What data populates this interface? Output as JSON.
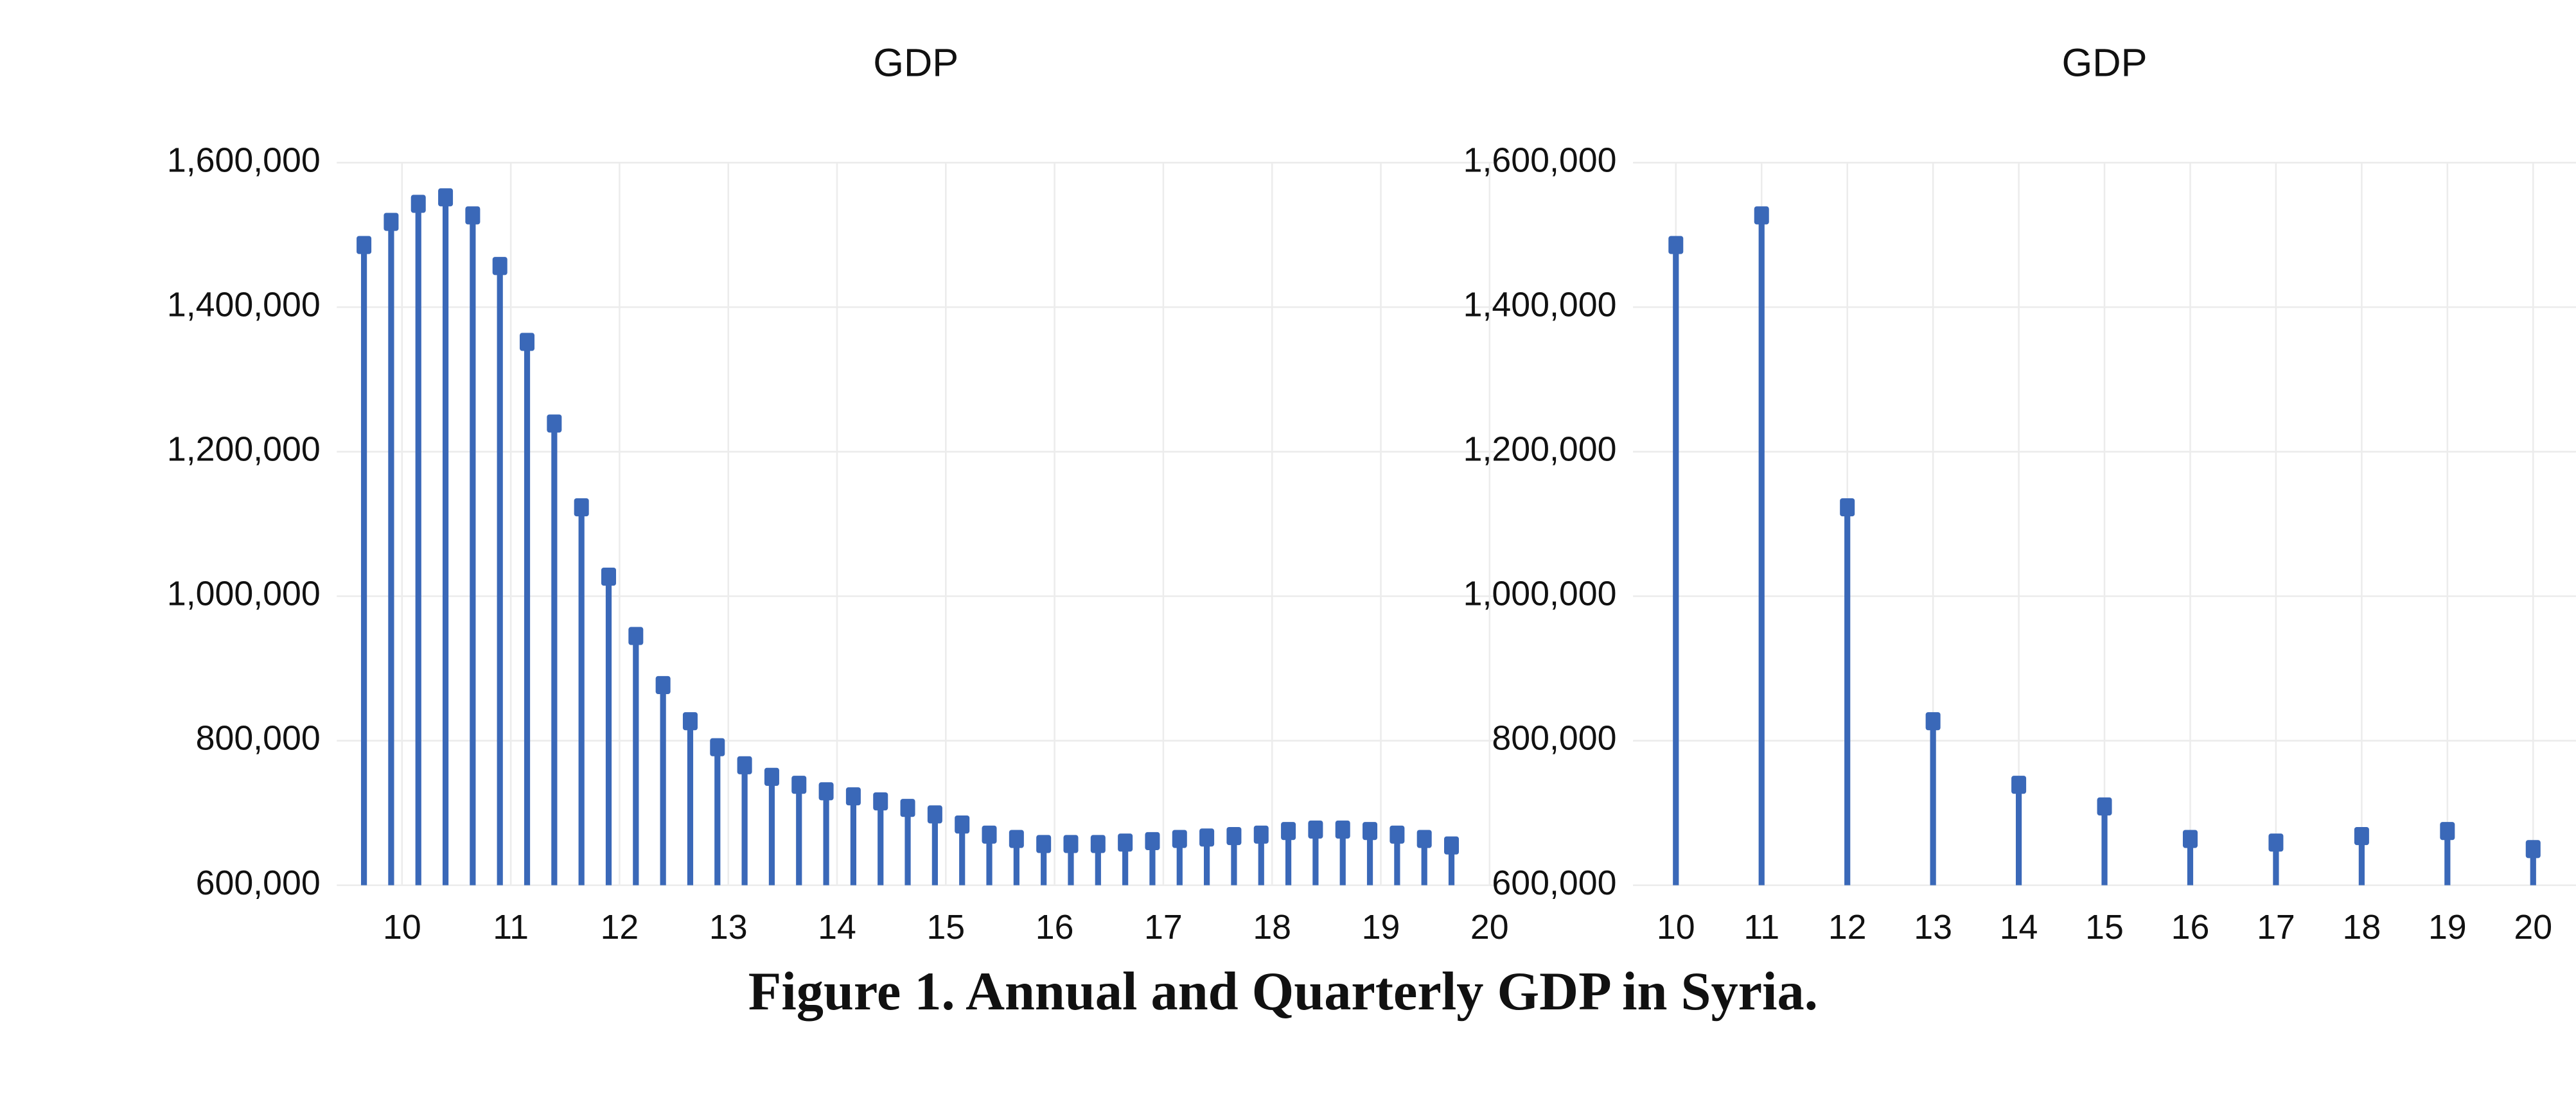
{
  "chart_data": [
    {
      "type": "stem",
      "title": "GDP",
      "color": "#3a68b8",
      "grid": true,
      "x": [
        9.65,
        9.9,
        10.15,
        10.4,
        10.65,
        10.9,
        11.15,
        11.4,
        11.65,
        11.9,
        12.15,
        12.4,
        12.65,
        12.9,
        13.15,
        13.4,
        13.65,
        13.9,
        14.15,
        14.4,
        14.65,
        14.9,
        15.15,
        15.4,
        15.65,
        15.9,
        16.15,
        16.4,
        16.65,
        16.9,
        17.15,
        17.4,
        17.65,
        17.9,
        18.15,
        18.4,
        18.65,
        18.9,
        19.15,
        19.4,
        19.65
      ],
      "values": [
        1486000,
        1518000,
        1543000,
        1552000,
        1527000,
        1457000,
        1352000,
        1239000,
        1123000,
        1027000,
        945000,
        877000,
        827000,
        791000,
        766000,
        750000,
        739000,
        730000,
        723000,
        716000,
        707000,
        698000,
        684000,
        670000,
        664000,
        657000,
        657000,
        657000,
        659000,
        661000,
        664000,
        666000,
        668000,
        670000,
        675000,
        677000,
        677000,
        675000,
        670000,
        664000,
        655000
      ],
      "xlim": [
        9.4,
        20.05
      ],
      "xticks": [
        10,
        11,
        12,
        13,
        14,
        15,
        16,
        17,
        18,
        19,
        20
      ],
      "ylim": [
        600000,
        1600000
      ],
      "yticks": [
        {
          "value": 600000,
          "label": "600,000"
        },
        {
          "value": 800000,
          "label": "800,000"
        },
        {
          "value": 1000000,
          "label": "1,000,000"
        },
        {
          "value": 1200000,
          "label": "1,200,000"
        },
        {
          "value": 1400000,
          "label": "1,400,000"
        },
        {
          "value": 1600000,
          "label": "1,600,000"
        }
      ]
    },
    {
      "type": "stem",
      "title": "GDP",
      "color": "#3a68b8",
      "grid": true,
      "x": [
        10,
        11,
        12,
        13,
        14,
        15,
        16,
        17,
        18,
        19,
        20
      ],
      "values": [
        1486000,
        1527000,
        1123000,
        827000,
        739000,
        709000,
        664000,
        659000,
        668000,
        675000,
        650000
      ],
      "xlim": [
        9.5,
        20.5
      ],
      "xticks": [
        10,
        11,
        12,
        13,
        14,
        15,
        16,
        17,
        18,
        19,
        20
      ],
      "ylim": [
        600000,
        1600000
      ],
      "yticks": [
        {
          "value": 600000,
          "label": "600,000"
        },
        {
          "value": 800000,
          "label": "800,000"
        },
        {
          "value": 1000000,
          "label": "1,000,000"
        },
        {
          "value": 1200000,
          "label": "1,200,000"
        },
        {
          "value": 1400000,
          "label": "1,400,000"
        },
        {
          "value": 1600000,
          "label": "1,600,000"
        }
      ]
    }
  ],
  "caption": "Figure 1. Annual and Quarterly GDP in Syria."
}
